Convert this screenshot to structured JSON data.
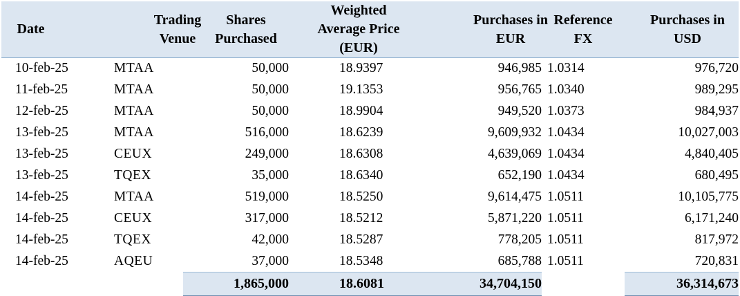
{
  "table": {
    "headers": {
      "date": "Date",
      "venue": "Trading Venue",
      "shares": "Shares Purchased",
      "price": "Weighted Average Price (EUR)",
      "eur": "Purchases in EUR",
      "fx": "Reference FX",
      "usd": "Purchases in USD"
    },
    "rows": [
      {
        "date": "10-feb-25",
        "venue": "MTAA",
        "shares": "50,000",
        "price": "18.9397",
        "eur": "946,985",
        "fx": "1.0314",
        "usd": "976,720"
      },
      {
        "date": "11-feb-25",
        "venue": "MTAA",
        "shares": "50,000",
        "price": "19.1353",
        "eur": "956,765",
        "fx": "1.0340",
        "usd": "989,295"
      },
      {
        "date": "12-feb-25",
        "venue": "MTAA",
        "shares": "50,000",
        "price": "18.9904",
        "eur": "949,520",
        "fx": "1.0373",
        "usd": "984,937"
      },
      {
        "date": "13-feb-25",
        "venue": "MTAA",
        "shares": "516,000",
        "price": "18.6239",
        "eur": "9,609,932",
        "fx": "1.0434",
        "usd": "10,027,003"
      },
      {
        "date": "13-feb-25",
        "venue": "CEUX",
        "shares": "249,000",
        "price": "18.6308",
        "eur": "4,639,069",
        "fx": "1.0434",
        "usd": "4,840,405"
      },
      {
        "date": "13-feb-25",
        "venue": "TQEX",
        "shares": "35,000",
        "price": "18.6340",
        "eur": "652,190",
        "fx": "1.0434",
        "usd": "680,495"
      },
      {
        "date": "14-feb-25",
        "venue": "MTAA",
        "shares": "519,000",
        "price": "18.5250",
        "eur": "9,614,475",
        "fx": "1.0511",
        "usd": "10,105,775"
      },
      {
        "date": "14-feb-25",
        "venue": "CEUX",
        "shares": "317,000",
        "price": "18.5212",
        "eur": "5,871,220",
        "fx": "1.0511",
        "usd": "6,171,240"
      },
      {
        "date": "14-feb-25",
        "venue": "TQEX",
        "shares": "42,000",
        "price": "18.5287",
        "eur": "778,205",
        "fx": "1.0511",
        "usd": "817,972"
      },
      {
        "date": "14-feb-25",
        "venue": "AQEU",
        "shares": "37,000",
        "price": "18.5348",
        "eur": "685,788",
        "fx": "1.0511",
        "usd": "720,831"
      }
    ],
    "totals": {
      "shares": "1,865,000",
      "price": "18.6081",
      "eur": "34,704,150",
      "usd": "36,314,673"
    }
  },
  "colors": {
    "header_fill": "#dce6f1",
    "total_fill": "#dce6f1"
  }
}
